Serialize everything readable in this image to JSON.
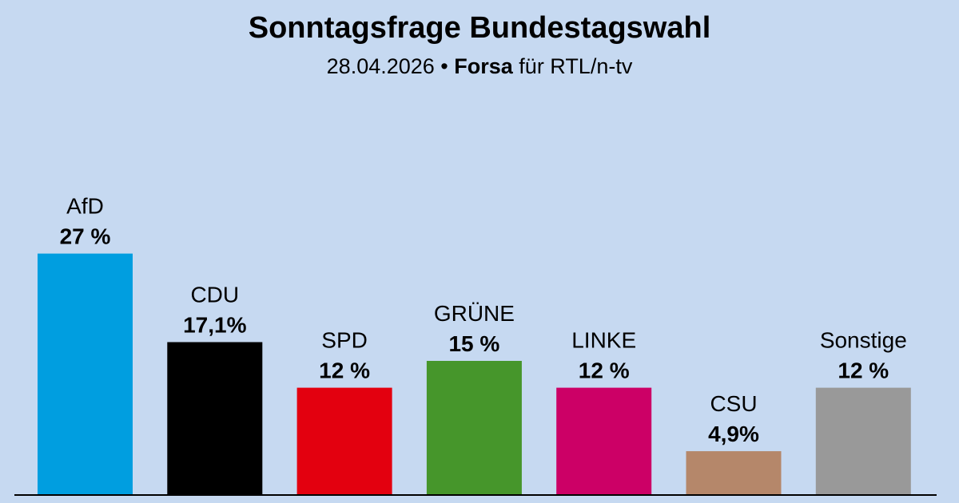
{
  "chart_data": {
    "type": "bar",
    "title": "Sonntagsfrage Bundestagswahl",
    "subtitle": {
      "date": "28.04.2026",
      "separator": " • ",
      "institute": "Forsa",
      "client": " für RTL/n-tv"
    },
    "categories": [
      "AfD",
      "CDU",
      "SPD",
      "GRÜNE",
      "LINKE",
      "CSU",
      "Sonstige"
    ],
    "values": [
      27,
      17.1,
      12,
      15,
      12,
      4.9,
      12
    ],
    "value_labels": [
      "27 %",
      "17,1%",
      "12 %",
      "15 %",
      "12 %",
      "4,9%",
      "12 %"
    ],
    "colors": [
      "#009ee0",
      "#000000",
      "#e3000f",
      "#46962b",
      "#cc0066",
      "#b5876a",
      "#999999"
    ],
    "xlabel": "",
    "ylabel": "",
    "grid": false,
    "legend": "none"
  }
}
